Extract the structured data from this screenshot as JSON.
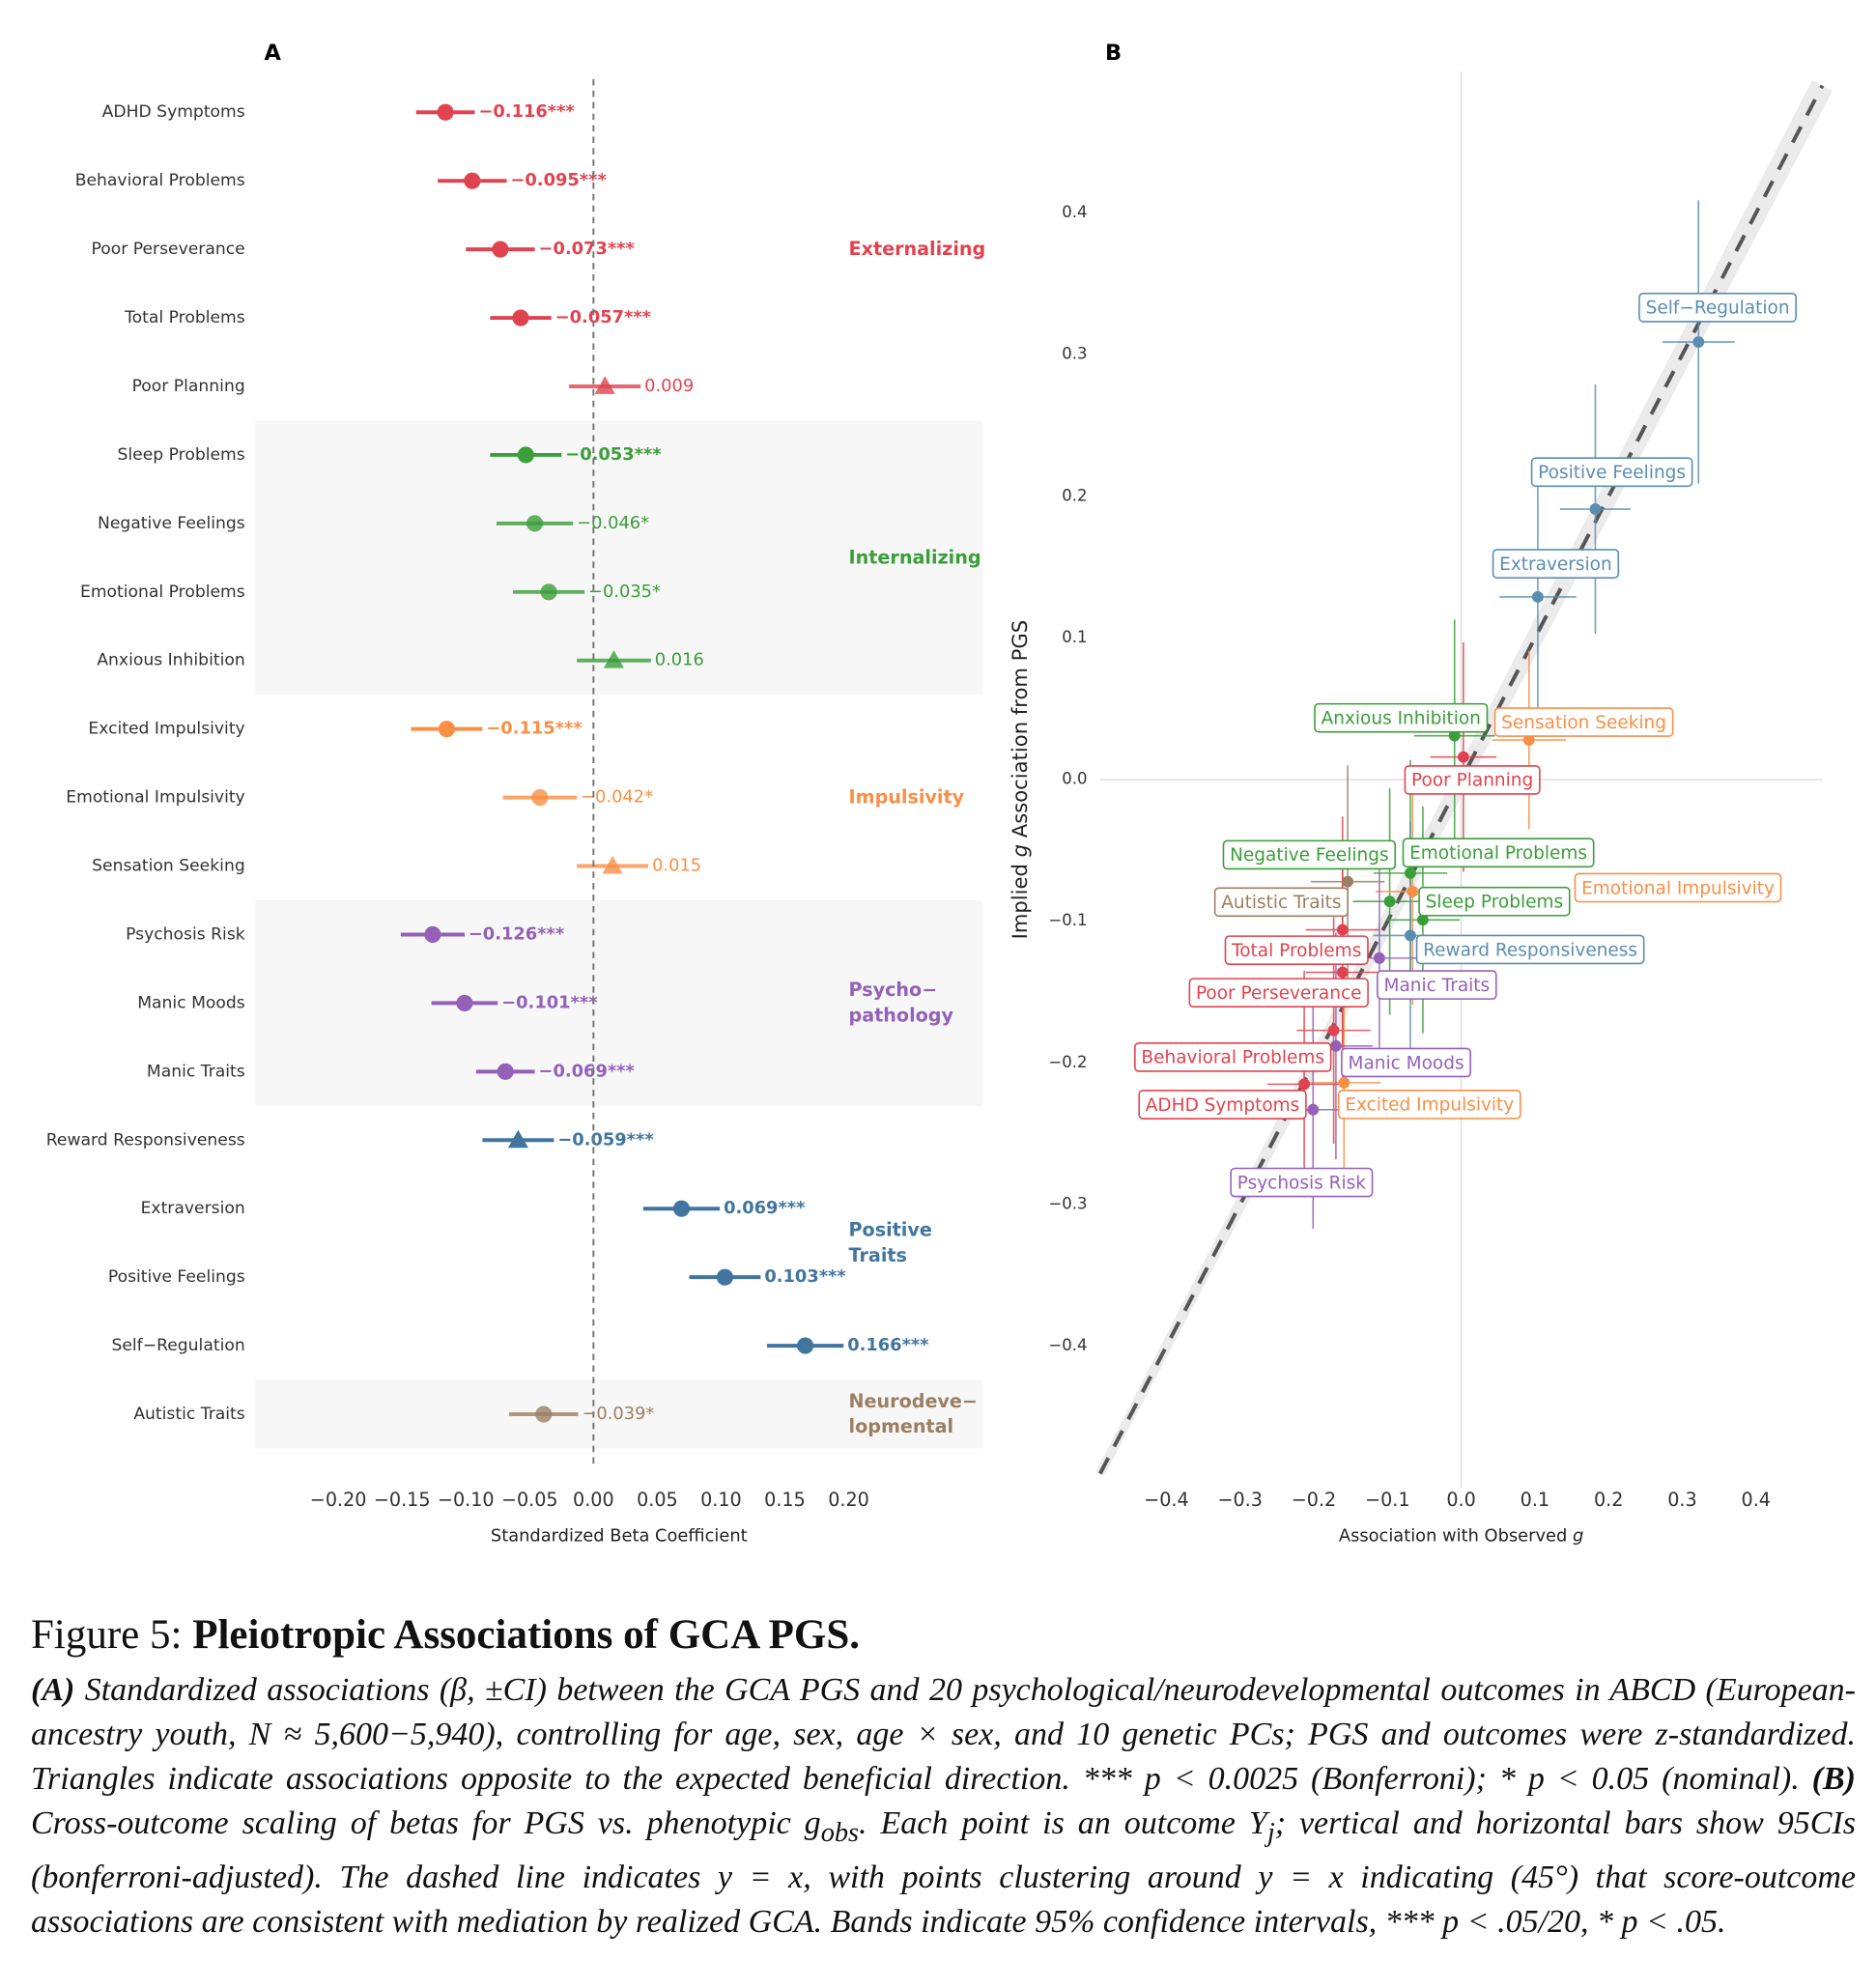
{
  "chart_data": [
    {
      "type": "forest",
      "panel": "A",
      "xlabel": "Standardized Beta Coefficient",
      "xlim": [
        -0.265,
        0.305
      ],
      "xticks": [
        {
          "value": -0.2,
          "label": "−0.20"
        },
        {
          "value": -0.15,
          "label": "−0.15"
        },
        {
          "value": -0.1,
          "label": "−0.10"
        },
        {
          "value": -0.05,
          "label": "−0.05"
        },
        {
          "value": 0,
          "label": "0.00"
        },
        {
          "value": 0.05,
          "label": "0.05"
        },
        {
          "value": 0.1,
          "label": "0.10"
        },
        {
          "value": 0.15,
          "label": "0.15"
        },
        {
          "value": 0.2,
          "label": "0.20"
        }
      ],
      "vline": 0,
      "series": [
        {
          "name": [
            "Externalizing"
          ],
          "color": "#e0434f",
          "categories": [
            "ADHD Symptoms",
            "Behavioral Problems",
            "Poor Perseverance",
            "Total Problems",
            "Poor Planning"
          ],
          "values": [
            -0.116,
            -0.095,
            -0.073,
            -0.057,
            0.009
          ],
          "errors": [
            0.023,
            0.027,
            0.027,
            0.024,
            0.028
          ],
          "value_labels": [
            "−0.116***",
            "−0.095***",
            "−0.073***",
            "−0.057***",
            "0.009"
          ],
          "markers": [
            "circle",
            "circle",
            "circle",
            "circle",
            "triangle"
          ]
        },
        {
          "name": [
            "Internalizing"
          ],
          "color": "#3a9e3a",
          "categories": [
            "Sleep Problems",
            "Negative Feelings",
            "Emotional Problems",
            "Anxious Inhibition"
          ],
          "values": [
            -0.053,
            -0.046,
            -0.035,
            0.016
          ],
          "errors": [
            0.028,
            0.03,
            0.028,
            0.029
          ],
          "value_labels": [
            "−0.053***",
            "−0.046*",
            "−0.035*",
            "0.016"
          ],
          "markers": [
            "circle",
            "circle",
            "circle",
            "triangle"
          ]
        },
        {
          "name": [
            "Impulsivity"
          ],
          "color": "#f98f45",
          "categories": [
            "Excited Impulsivity",
            "Emotional Impulsivity",
            "Sensation Seeking"
          ],
          "values": [
            -0.115,
            -0.042,
            0.015
          ],
          "errors": [
            0.028,
            0.029,
            0.028
          ],
          "value_labels": [
            "−0.115***",
            "−0.042*",
            "0.015"
          ],
          "markers": [
            "circle",
            "circle",
            "triangle"
          ]
        },
        {
          "name": [
            "Psycho−",
            "pathology"
          ],
          "color": "#9460b8",
          "categories": [
            "Psychosis Risk",
            "Manic Moods",
            "Manic Traits"
          ],
          "values": [
            -0.126,
            -0.101,
            -0.069
          ],
          "errors": [
            0.025,
            0.026,
            0.023
          ],
          "value_labels": [
            "−0.126***",
            "−0.101***",
            "−0.069***"
          ],
          "markers": [
            "circle",
            "circle",
            "circle"
          ]
        },
        {
          "name": [
            "Positive",
            "Traits"
          ],
          "color": "#41759e",
          "categories": [
            "Reward Responsiveness",
            "Extraversion",
            "Positive Feelings",
            "Self−Regulation"
          ],
          "values": [
            -0.059,
            0.069,
            0.103,
            0.166
          ],
          "errors": [
            0.028,
            0.03,
            0.028,
            0.03
          ],
          "value_labels": [
            "−0.059***",
            "0.069***",
            "0.103***",
            "0.166***"
          ],
          "markers": [
            "triangle",
            "circle",
            "circle",
            "circle"
          ]
        },
        {
          "name": [
            "Neurodeve−",
            "lopmental"
          ],
          "color": "#9b7f63",
          "categories": [
            "Autistic Traits"
          ],
          "values": [
            -0.039
          ],
          "errors": [
            0.027
          ],
          "value_labels": [
            "−0.039*"
          ],
          "markers": [
            "circle"
          ]
        }
      ]
    },
    {
      "type": "scatter",
      "panel": "B",
      "xlabel": [
        "Association with Observed ",
        "g"
      ],
      "ylabel": [
        "Implied ",
        "g",
        " Association from PGS"
      ],
      "xlim": [
        -0.49,
        0.49
      ],
      "ylim": [
        -0.5,
        0.5
      ],
      "xticks": [
        {
          "value": -0.4,
          "label": "−0.4"
        },
        {
          "value": -0.3,
          "label": "−0.3"
        },
        {
          "value": -0.2,
          "label": "−0.2"
        },
        {
          "value": -0.1,
          "label": "−0.1"
        },
        {
          "value": 0,
          "label": "0.0"
        },
        0.1,
        0.2,
        0.3,
        0.4
      ],
      "yticks": [
        {
          "value": -0.4,
          "label": "−0.4"
        },
        {
          "value": -0.3,
          "label": "−0.3"
        },
        {
          "value": -0.2,
          "label": "−0.2"
        },
        {
          "value": -0.1,
          "label": "−0.1"
        },
        {
          "value": 0,
          "label": "0.0"
        },
        0.1,
        0.2,
        0.3,
        0.4
      ],
      "zero_lines": true,
      "diagonal": true,
      "series": [
        {
          "color": "#e0434f",
          "labels": [
            "ADHD Symptoms",
            "Behavioral Problems",
            "Poor Perseverance",
            "Total Problems",
            "Poor Planning"
          ],
          "x": [
            -0.213,
            -0.173,
            -0.161,
            -0.161,
            0.003
          ],
          "y": [
            -0.215,
            -0.177,
            -0.136,
            -0.106,
            0.016
          ],
          "xerr": [
            0.05,
            0.05,
            0.05,
            0.05,
            0.045
          ],
          "yerr": [
            0.08,
            0.08,
            0.08,
            0.08,
            0.081
          ]
        },
        {
          "color": "#3a9e3a",
          "labels": [
            "Sleep Problems",
            "Negative Feelings",
            "Emotional Problems",
            "Anxious Inhibition"
          ],
          "x": [
            -0.097,
            -0.052,
            -0.069,
            -0.009
          ],
          "y": [
            -0.086,
            -0.099,
            -0.066,
            0.031
          ],
          "xerr": [
            0.05,
            0.05,
            0.05,
            0.055
          ],
          "yerr": [
            0.08,
            0.08,
            0.08,
            0.082
          ]
        },
        {
          "color": "#f98f45",
          "labels": [
            "Excited Impulsivity",
            "Emotional Impulsivity",
            "Sensation Seeking"
          ],
          "x": [
            -0.159,
            -0.066,
            0.092
          ],
          "y": [
            -0.214,
            -0.079,
            0.028
          ],
          "xerr": [
            0.05,
            0.05,
            0.05
          ],
          "yerr": [
            0.08,
            0.08,
            0.063
          ]
        },
        {
          "color": "#9460b8",
          "labels": [
            "Psychosis Risk",
            "Manic Moods",
            "Manic Traits"
          ],
          "x": [
            -0.201,
            -0.17,
            -0.111
          ],
          "y": [
            -0.233,
            -0.188,
            -0.126
          ],
          "xerr": [
            0.05,
            0.05,
            0.05
          ],
          "yerr": [
            0.084,
            0.08,
            0.08
          ]
        },
        {
          "color": "#5b8db0",
          "labels": [
            "Reward Responsiveness",
            "Extraversion",
            "Positive Feelings",
            "Self−Regulation"
          ],
          "x": [
            -0.069,
            0.104,
            0.182,
            0.322
          ],
          "y": [
            -0.11,
            0.129,
            0.191,
            0.309
          ],
          "xerr": [
            0.05,
            0.052,
            0.048,
            0.049
          ],
          "yerr": [
            0.08,
            0.08,
            0.088,
            0.1
          ]
        },
        {
          "color": "#9b7f63",
          "labels": [
            "Autistic Traits"
          ],
          "x": [
            -0.154
          ],
          "y": [
            -0.072
          ],
          "xerr": [
            0.05
          ],
          "yerr": [
            0.082
          ]
        }
      ]
    }
  ],
  "caption": {
    "label": "Figure 5:",
    "title": "Pleiotropic Associations of GCA PGS.",
    "parts": [
      "(A)",
      " Standardized associations (β, ±CI) between the GCA PGS and 20 psychological/neurodevelopmental outcomes in ABCD (European-ancestry youth, N ≈ 5,600−5,940), controlling for age, sex, age × sex, and 10 genetic PCs; PGS and outcomes were z-standardized. Triangles indicate associations opposite to the expected beneficial direction. *** p < 0.0025 (Bonferroni); * p < 0.05 (nominal). ",
      "(B)",
      " Cross-outcome scaling of betas for PGS vs. phenotypic g",
      "obs",
      ". Each point is an outcome Y",
      "j",
      "; vertical and horizontal bars show 95CIs (bonferroni-adjusted). The dashed line indicates y = x, with points clustering around y = x indicating (45°) that score-outcome associations are consistent with mediation by realized GCA. Bands indicate 95% confidence intervals, *** p < .05/20, * p < .05."
    ]
  }
}
